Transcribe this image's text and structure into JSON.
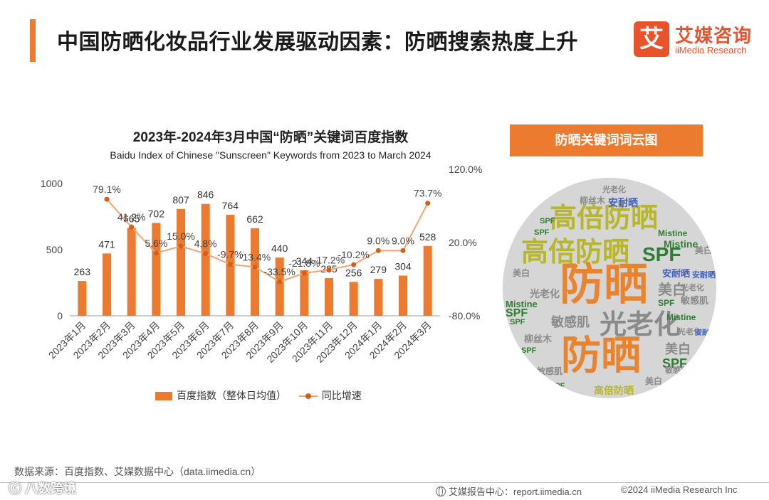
{
  "header": {
    "title": "中国防晒化妆品行业发展驱动因素：防晒搜索热度上升",
    "logo_mark": "艾",
    "logo_cn": "艾媒咨询",
    "logo_en": "iiMedia Research"
  },
  "chart_data": {
    "type": "bar+line",
    "title": "2023年-2024年3月中国“防晒”关键词百度指数",
    "subtitle": "Baidu Index of Chinese \"Sunscreen\" Keywords from 2023 to March 2024",
    "categories": [
      "2023年1月",
      "2023年2月",
      "2023年3月",
      "2023年4月",
      "2023年5月",
      "2023年6月",
      "2023年7月",
      "2023年8月",
      "2023年9月",
      "2023年10月",
      "2023年11月",
      "2023年12月",
      "2024年1月",
      "2024年2月",
      "2024年3月"
    ],
    "series": [
      {
        "name": "百度指数（整体日均值）",
        "type": "bar",
        "axis": "left",
        "color": "#ec7a2f",
        "values": [
          263,
          471,
          665,
          702,
          807,
          846,
          764,
          662,
          440,
          344,
          285,
          256,
          279,
          304,
          528
        ],
        "labels": [
          "263",
          "471",
          "665",
          "702",
          "807",
          "846",
          "764",
          "662",
          "440",
          "344",
          "285",
          "256",
          "279",
          "304",
          "528"
        ]
      },
      {
        "name": "同比增速",
        "type": "line",
        "axis": "right",
        "color": "#d55f19",
        "line_color": "#f2a572",
        "values": [
          null,
          79.1,
          41.2,
          5.6,
          15.0,
          4.8,
          -9.7,
          -13.4,
          -33.5,
          -21.8,
          -17.2,
          -10.2,
          9.0,
          9.0,
          73.7
        ],
        "labels": [
          "",
          "79.1%",
          "41.2%",
          "5.6%",
          "15.0%",
          "4.8%",
          "-9.7%",
          "-13.4%",
          "-33.5%",
          "-21.8%",
          "-17.2%",
          "-10.2%",
          "9.0%",
          "9.0%",
          "73.7%"
        ]
      }
    ],
    "left_axis": {
      "min": 0,
      "max": 1000,
      "ticks": [
        0,
        500,
        1000
      ],
      "tick_labels": [
        "0",
        "500",
        "1000"
      ]
    },
    "right_axis": {
      "min": -80,
      "max": 120,
      "ticks": [
        -80,
        20,
        120
      ],
      "tick_labels": [
        "-80.0%",
        "20.0%",
        "120.0%"
      ]
    },
    "legend": [
      "百度指数（整体日均值）",
      "同比增速"
    ],
    "legend_position": "bottom",
    "grid": false
  },
  "word_cloud": {
    "title": "防晒关键词词云图",
    "words": [
      "防晒",
      "防晒",
      "高倍防晒",
      "高倍防晒",
      "光老化",
      "SPF",
      "SPF",
      "SPF",
      "SPF",
      "美白",
      "美白",
      "美白",
      "敏感肌",
      "敏感肌",
      "Mistine",
      "Mistine",
      "Mistine",
      "安耐晒",
      "安耐晒",
      "安耐晒",
      "柳丝木",
      "柳丝木",
      "光老化",
      "光老化",
      "高倍防晒",
      "美白",
      "SPF",
      "敏感肌",
      "SPF",
      "Mistine",
      "SPF",
      "光老化",
      "美白",
      "SPF",
      "安耐晒",
      "敏感肌",
      "光老化",
      "SPF"
    ]
  },
  "footer": {
    "source": "数据来源：百度指数、艾媒数据中心（data.iimedia.cn）",
    "watermark": "ⓒ  八数跨境",
    "report_center": "艾媒报告中心：report.iimedia.cn",
    "copyright": "©2024  iiMedia Research  Inc"
  },
  "colors": {
    "accent": "#ec7a2f",
    "line_marker": "#d55f19",
    "line": "#f2a572",
    "cloud_bg": "#d6d6d6"
  }
}
